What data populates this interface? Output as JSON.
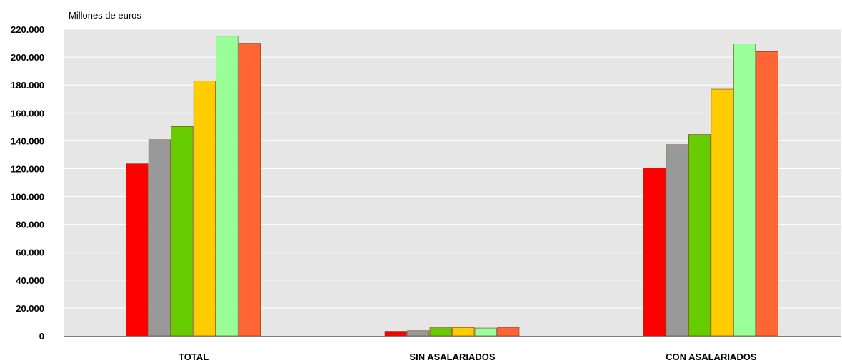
{
  "chart_data": {
    "type": "bar",
    "ylabel": "Millones de euros",
    "categories": [
      "TOTAL",
      "SIN ASALARIADOS",
      "CON ASALARIADOS"
    ],
    "series": [
      {
        "color": "#ff0000",
        "values": [
          123500,
          3300,
          120500
        ]
      },
      {
        "color": "#999999",
        "values": [
          140800,
          3700,
          137200
        ]
      },
      {
        "color": "#66cc00",
        "values": [
          150300,
          5800,
          144500
        ]
      },
      {
        "color": "#ffcc00",
        "values": [
          183000,
          6000,
          177000
        ]
      },
      {
        "color": "#99ff99",
        "values": [
          215000,
          5600,
          209500
        ]
      },
      {
        "color": "#ff6633",
        "values": [
          210000,
          6100,
          204000
        ]
      }
    ],
    "ylim": [
      0,
      220000
    ],
    "yticks": [
      "0",
      "20.000",
      "40.000",
      "60.000",
      "80.000",
      "100.000",
      "120.000",
      "140.000",
      "160.000",
      "180.000",
      "200.000",
      "220.000"
    ],
    "grid": true,
    "legend": "none"
  }
}
